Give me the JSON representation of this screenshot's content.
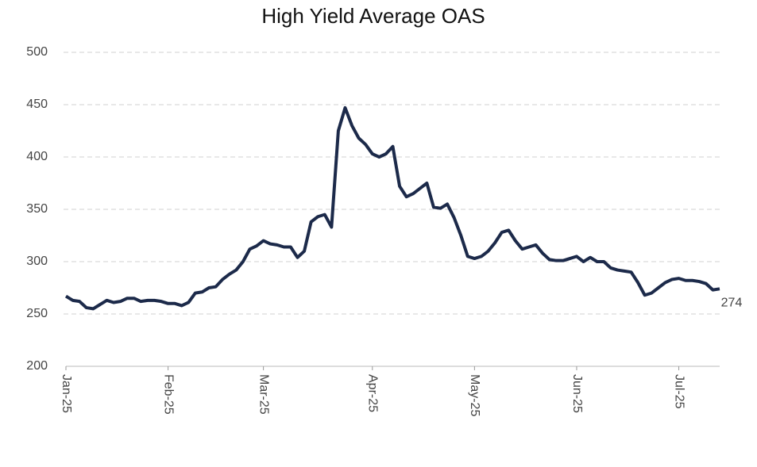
{
  "chart_data": {
    "type": "line",
    "title": "High Yield Average OAS",
    "categories": [
      "Jan-25",
      null,
      null,
      null,
      null,
      null,
      null,
      null,
      null,
      null,
      null,
      null,
      null,
      null,
      null,
      "Feb-25",
      null,
      null,
      null,
      null,
      null,
      null,
      null,
      null,
      null,
      null,
      null,
      null,
      null,
      "Mar-25",
      null,
      null,
      null,
      null,
      null,
      null,
      null,
      null,
      null,
      null,
      null,
      null,
      null,
      null,
      null,
      "Apr-25",
      null,
      null,
      null,
      null,
      null,
      null,
      null,
      null,
      null,
      null,
      null,
      null,
      null,
      null,
      "May-25",
      null,
      null,
      null,
      null,
      null,
      null,
      null,
      null,
      null,
      null,
      null,
      null,
      null,
      null,
      "Jun-25",
      null,
      null,
      null,
      null,
      null,
      null,
      null,
      null,
      null,
      null,
      null,
      null,
      null,
      null,
      "Jul-25",
      null,
      null,
      null,
      null,
      null,
      null
    ],
    "series": [
      {
        "name": "High Yield Average OAS",
        "color": "#1c2a4a",
        "values": [
          267,
          263,
          262,
          256,
          255,
          259,
          263,
          261,
          262,
          265,
          265,
          262,
          263,
          263,
          262,
          260,
          260,
          258,
          261,
          270,
          271,
          275,
          276,
          283,
          288,
          292,
          300,
          312,
          315,
          320,
          317,
          316,
          314,
          314,
          304,
          310,
          338,
          343,
          345,
          333,
          425,
          447,
          430,
          418,
          412,
          403,
          400,
          403,
          410,
          372,
          362,
          365,
          370,
          375,
          352,
          351,
          355,
          342,
          325,
          305,
          303,
          305,
          310,
          318,
          328,
          330,
          320,
          312,
          314,
          316,
          308,
          302,
          301,
          301,
          303,
          305,
          300,
          304,
          300,
          300,
          294,
          292,
          291,
          290,
          280,
          268,
          270,
          275,
          280,
          283,
          284,
          282,
          282,
          281,
          279,
          273,
          274
        ]
      }
    ],
    "ylim": [
      200,
      500
    ],
    "yticks": [
      200,
      250,
      300,
      350,
      400,
      450,
      500
    ],
    "grid": true
  }
}
